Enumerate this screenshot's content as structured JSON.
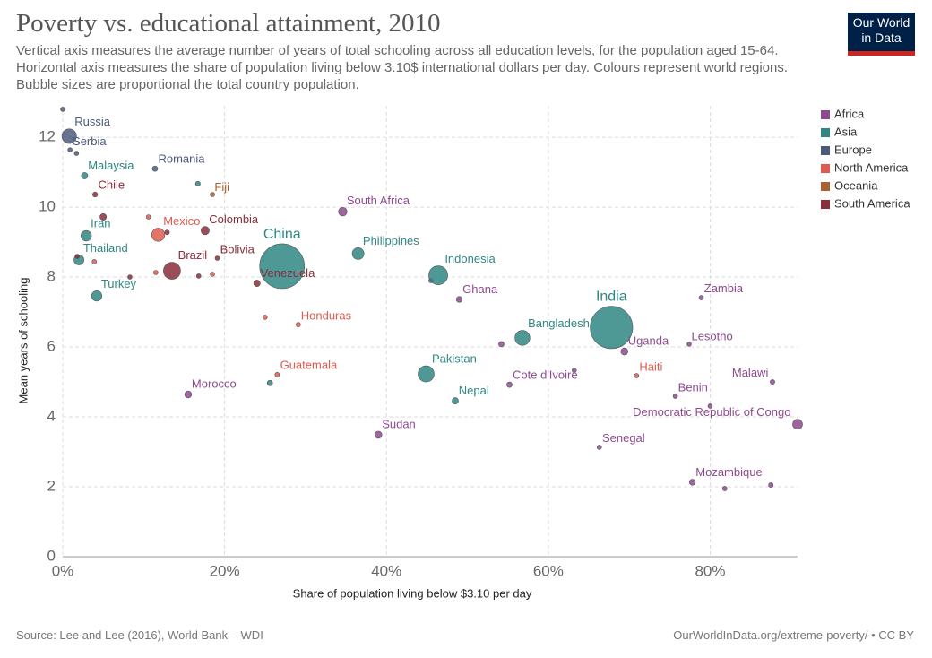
{
  "chart_data": {
    "type": "bubble",
    "title": "Poverty vs. educational attainment, 2010",
    "subtitle": "Vertical axis measures the average number of years of total schooling across all education levels, for the population aged 15-64. Horizontal axis measures the share of population living below 3.10$ international dollars per day. Colours represent world regions. Bubble sizes are proportional the total country population.",
    "x_label": "Share of population living below $3.10 per day",
    "y_label": "Mean years of schooling",
    "source": "Source: Lee and Lee (2016), World Bank – WDI",
    "url": "OurWorldInData.org/extreme-poverty/ • CC BY",
    "logo": "Our World in Data",
    "xlim": [
      0,
      90.8
    ],
    "ylim": [
      0,
      12.9
    ],
    "xticks": [
      {
        "value": 0,
        "label": "0%"
      },
      {
        "value": 20,
        "label": "20%"
      },
      {
        "value": 40,
        "label": "40%"
      },
      {
        "value": 60,
        "label": "60%"
      },
      {
        "value": 80,
        "label": "80%"
      }
    ],
    "yticks": [
      0,
      2,
      4,
      6,
      8,
      10,
      12
    ],
    "grid": true,
    "legend": "top-right",
    "series": [
      {
        "name": "Africa",
        "color": "#8e4a8f",
        "x": [
          34.6,
          49.0,
          78.9,
          69.4,
          77.4,
          87.7,
          55.2,
          75.7,
          90.8,
          66.3,
          39.0,
          15.5,
          77.8,
          81.8,
          87.5,
          54.2,
          63.2,
          80.0,
          45.5
        ],
        "y": [
          9.87,
          7.36,
          7.41,
          5.87,
          6.08,
          5.0,
          4.92,
          4.59,
          3.79,
          3.13,
          3.49,
          4.64,
          2.13,
          1.95,
          2.05,
          6.08,
          5.33,
          4.31,
          7.9
        ],
        "sizes": [
          50,
          24,
          13,
          33,
          2,
          15,
          20,
          9,
          65,
          13,
          34,
          32,
          24,
          14,
          15,
          20,
          8,
          7,
          10
        ],
        "labels": [
          "South Africa",
          "Ghana",
          "Zambia",
          "Uganda",
          "Lesotho",
          "Malawi",
          "Cote d'Ivoire",
          "Benin",
          "Democratic Republic of Congo",
          "Senegal",
          "Sudan",
          "Morocco",
          "Mozambique",
          null,
          null,
          null,
          null,
          null,
          null
        ]
      },
      {
        "name": "Asia",
        "color": "#2f8682",
        "x": [
          27.1,
          67.8,
          46.4,
          36.5,
          56.8,
          44.9,
          48.5,
          2.7,
          2.9,
          2.0,
          4.2,
          16.7,
          25.6
        ],
        "y": [
          8.31,
          6.56,
          8.05,
          8.67,
          6.26,
          5.23,
          4.46,
          10.9,
          9.18,
          8.49,
          7.46,
          10.67,
          4.97
        ],
        "sizes": [
          1340,
          1205,
          240,
          93,
          150,
          174,
          27,
          28,
          74,
          67,
          72,
          16,
          20
        ],
        "labels": [
          "China",
          "India",
          "Indonesia",
          "Philippines",
          "Bangladesh",
          "Pakistan",
          "Nepal",
          "Malaysia",
          "Iran",
          "Thailand",
          "Turkey",
          null,
          null
        ]
      },
      {
        "name": "Europe",
        "color": "#4c5a7c",
        "x": [
          0.8,
          0.9,
          11.4,
          0.0,
          1.7
        ],
        "y": [
          12.03,
          11.64,
          11.1,
          12.8,
          11.54
        ],
        "sizes": [
          143,
          7,
          20,
          5,
          10
        ],
        "labels": [
          "Russia",
          "Serbia",
          "Romania",
          null,
          null
        ]
      },
      {
        "name": "North America",
        "color": "#e05a4e",
        "x": [
          11.8,
          29.1,
          26.5,
          70.9,
          10.6,
          3.9,
          11.5,
          25.0,
          18.5
        ],
        "y": [
          9.21,
          6.64,
          5.21,
          5.18,
          9.72,
          8.44,
          8.13,
          6.85,
          8.08
        ],
        "sizes": [
          114,
          8,
          14,
          10,
          4,
          4,
          6,
          6,
          6
        ],
        "labels": [
          "Mexico",
          "Honduras",
          "Guatemala",
          "Haiti",
          null,
          null,
          null,
          null,
          null
        ]
      },
      {
        "name": "Oceania",
        "color": "#a8612f",
        "x": [
          18.5
        ],
        "y": [
          10.36
        ],
        "sizes": [
          1
        ],
        "labels": [
          "Fiji"
        ]
      },
      {
        "name": "South America",
        "color": "#8b2e3a",
        "x": [
          4.0,
          17.6,
          13.5,
          19.1,
          24.0,
          5.0,
          12.9,
          16.8,
          8.3,
          1.8
        ],
        "y": [
          10.36,
          9.33,
          8.18,
          8.54,
          7.82,
          9.72,
          9.28,
          8.03,
          8.0,
          8.59
        ],
        "sizes": [
          17,
          46,
          195,
          10,
          29,
          29,
          15,
          10,
          6,
          3
        ],
        "labels": [
          "Chile",
          "Colombia",
          "Brazil",
          "Bolivia",
          "Venezuela",
          null,
          null,
          null,
          null,
          null
        ]
      }
    ]
  }
}
